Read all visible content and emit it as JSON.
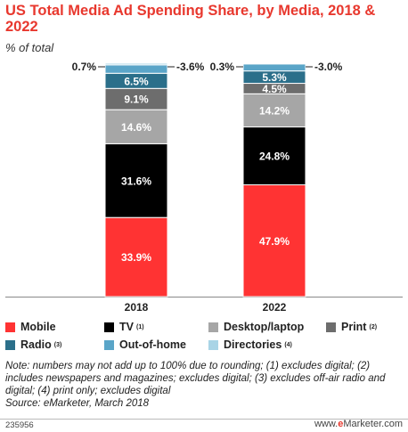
{
  "title": "US Total Media Ad Spending Share, by Media, 2018 & 2022",
  "subtitle": "% of total",
  "chart_data": {
    "type": "bar",
    "stacked": true,
    "categories": [
      "2018",
      "2022"
    ],
    "ylim": [
      0,
      100
    ],
    "series": [
      {
        "name": "Mobile",
        "color": "#ff3333",
        "values": [
          33.9,
          47.9
        ],
        "labels": [
          "33.9%",
          "47.9%"
        ]
      },
      {
        "name": "TV",
        "sup": "(1)",
        "color": "#000000",
        "values": [
          31.6,
          24.8
        ],
        "labels": [
          "31.6%",
          "24.8%"
        ]
      },
      {
        "name": "Desktop/laptop",
        "color": "#a6a6a6",
        "values": [
          14.6,
          14.2
        ],
        "labels": [
          "14.6%",
          "14.2%"
        ]
      },
      {
        "name": "Print",
        "sup": "(2)",
        "color": "#6d6d6d",
        "values": [
          9.1,
          4.5
        ],
        "labels": [
          "9.1%",
          "4.5%"
        ]
      },
      {
        "name": "Radio",
        "sup": "(3)",
        "color": "#2b6f8a",
        "values": [
          6.5,
          5.3
        ],
        "labels": [
          "6.5%",
          "5.3%"
        ]
      },
      {
        "name": "Out-of-home",
        "color": "#5aa5c8",
        "values": [
          3.6,
          3.0
        ],
        "labels": [
          "3.6%",
          "3.0%"
        ]
      },
      {
        "name": "Directories",
        "sup": "(4)",
        "color": "#a9d4e6",
        "values": [
          0.7,
          0.3
        ],
        "labels": [
          "0.7%",
          "0.3%"
        ]
      }
    ]
  },
  "note": "Note: numbers may not add up to 100% due to rounding; (1) excludes digital; (2) includes newspapers and magazines; excludes digital; (3) excludes off-air radio and digital; (4) print only; excludes digital",
  "source": "Source: eMarketer, March 2018",
  "chart_id": "235956",
  "brand": {
    "prefix": "www.",
    "e": "e",
    "name": "Marketer",
    "suffix": ".com"
  }
}
